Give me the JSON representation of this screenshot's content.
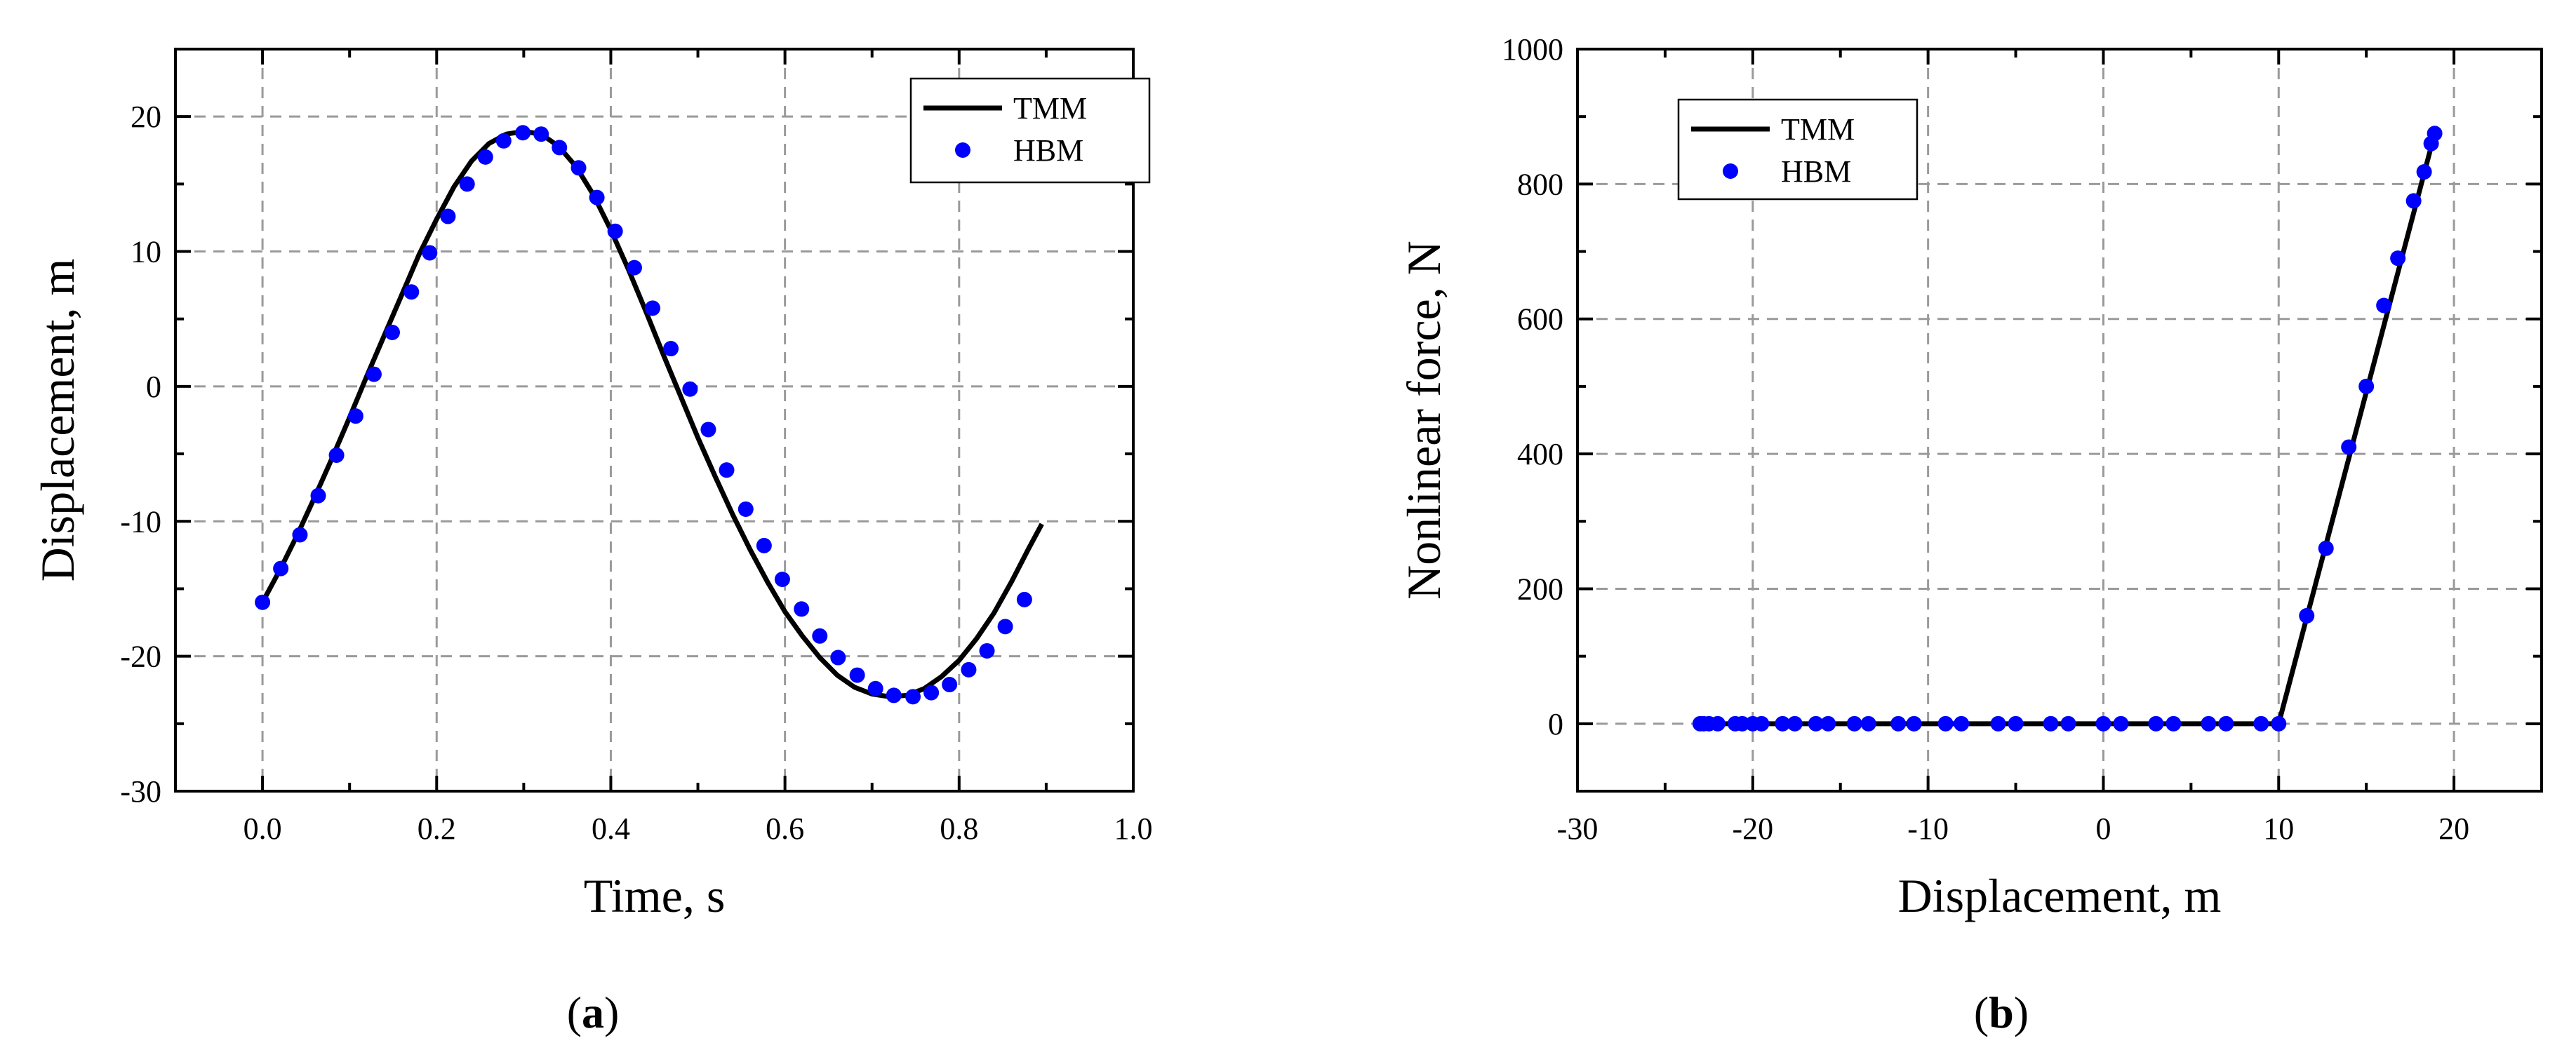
{
  "chart_data": [
    {
      "type": "line",
      "panel_label": "a",
      "title": "",
      "xlabel": "Time, s",
      "ylabel": "Displacement, m",
      "xlim": [
        -0.1,
        1.0
      ],
      "ylim": [
        -30,
        25
      ],
      "xticks": [
        0.0,
        0.2,
        0.4,
        0.6,
        0.8,
        1.0
      ],
      "xtick_labels": [
        "0.0",
        "0.2",
        "0.4",
        "0.6",
        "0.8",
        "1.0"
      ],
      "yticks": [
        -30,
        -20,
        -10,
        0,
        10,
        20
      ],
      "ytick_labels": [
        "-30",
        "-20",
        "-10",
        "0",
        "10",
        "20"
      ],
      "grid": true,
      "legend_position": "top-right",
      "series": [
        {
          "name": "TMM",
          "style": "line",
          "color": "#000000",
          "x": [
            0.0,
            0.02,
            0.04,
            0.06,
            0.08,
            0.1,
            0.12,
            0.14,
            0.16,
            0.18,
            0.2,
            0.22,
            0.24,
            0.26,
            0.28,
            0.3,
            0.32,
            0.34,
            0.36,
            0.38,
            0.4,
            0.42,
            0.44,
            0.46,
            0.48,
            0.5,
            0.52,
            0.54,
            0.56,
            0.58,
            0.6,
            0.62,
            0.64,
            0.66,
            0.68,
            0.7,
            0.72,
            0.74,
            0.76,
            0.78,
            0.8,
            0.82,
            0.84,
            0.86,
            0.88,
            0.895
          ],
          "y": [
            -16.0,
            -13.6,
            -11.0,
            -8.2,
            -5.3,
            -2.3,
            0.8,
            3.8,
            6.8,
            9.8,
            12.4,
            14.8,
            16.7,
            18.0,
            18.7,
            18.9,
            18.7,
            17.8,
            16.3,
            14.2,
            11.6,
            8.7,
            5.6,
            2.4,
            -0.7,
            -3.8,
            -6.7,
            -9.5,
            -12.1,
            -14.5,
            -16.7,
            -18.5,
            -20.1,
            -21.4,
            -22.3,
            -22.8,
            -23.0,
            -22.9,
            -22.4,
            -21.5,
            -20.3,
            -18.7,
            -16.8,
            -14.5,
            -12.0,
            -10.2
          ]
        },
        {
          "name": "HBM",
          "style": "markers",
          "color": "#0000ff",
          "x": [
            0.0,
            0.021,
            0.043,
            0.064,
            0.085,
            0.107,
            0.128,
            0.149,
            0.171,
            0.192,
            0.213,
            0.235,
            0.256,
            0.277,
            0.299,
            0.32,
            0.341,
            0.363,
            0.384,
            0.405,
            0.427,
            0.448,
            0.469,
            0.491,
            0.512,
            0.533,
            0.555,
            0.576,
            0.597,
            0.619,
            0.64,
            0.661,
            0.683,
            0.704,
            0.725,
            0.747,
            0.768,
            0.789,
            0.811,
            0.832,
            0.853,
            0.875
          ],
          "y": [
            -16.0,
            -13.5,
            -11.0,
            -8.1,
            -5.1,
            -2.2,
            0.9,
            4.0,
            7.0,
            9.9,
            12.6,
            15.0,
            17.0,
            18.2,
            18.8,
            18.7,
            17.7,
            16.2,
            14.0,
            11.5,
            8.8,
            5.8,
            2.8,
            -0.2,
            -3.2,
            -6.2,
            -9.1,
            -11.8,
            -14.3,
            -16.5,
            -18.5,
            -20.1,
            -21.4,
            -22.4,
            -22.9,
            -23.0,
            -22.7,
            -22.1,
            -21.0,
            -19.6,
            -17.8,
            -15.8
          ]
        }
      ]
    },
    {
      "type": "line",
      "panel_label": "b",
      "title": "",
      "xlabel": "Displacement, m",
      "ylabel": "Nonlinear force, N",
      "xlim": [
        -30,
        25
      ],
      "ylim": [
        -100,
        1000
      ],
      "xticks": [
        -30,
        -20,
        -10,
        0,
        10,
        20
      ],
      "xtick_labels": [
        "-30",
        "-20",
        "-10",
        "0",
        "10",
        "20"
      ],
      "yticks": [
        0,
        200,
        400,
        600,
        800,
        1000
      ],
      "ytick_labels": [
        "0",
        "200",
        "400",
        "600",
        "800",
        "1000"
      ],
      "grid": true,
      "legend_position": "top-left",
      "series": [
        {
          "name": "TMM",
          "style": "line",
          "color": "#000000",
          "x": [
            -23.0,
            10.0,
            18.9
          ],
          "y": [
            0,
            0,
            875
          ]
        },
        {
          "name": "HBM",
          "style": "markers",
          "color": "#0000ff",
          "x": [
            -23.0,
            -22.8,
            -22.5,
            -22.0,
            -21.0,
            -20.6,
            -20.0,
            -19.5,
            -18.3,
            -17.6,
            -16.4,
            -15.7,
            -14.2,
            -13.4,
            -11.7,
            -10.8,
            -9.0,
            -8.1,
            -6.0,
            -5.0,
            -3.0,
            -2.0,
            0.0,
            1.0,
            3.0,
            4.0,
            6.0,
            7.0,
            9.0,
            10.0,
            11.6,
            12.7,
            14.0,
            15.0,
            16.0,
            16.8,
            17.7,
            18.3,
            18.7,
            18.9
          ],
          "y": [
            0,
            0,
            0,
            0,
            0,
            0,
            0,
            0,
            0,
            0,
            0,
            0,
            0,
            0,
            0,
            0,
            0,
            0,
            0,
            0,
            0,
            0,
            0,
            0,
            0,
            0,
            0,
            0,
            0,
            0,
            160,
            260,
            410,
            500,
            620,
            690,
            775,
            818,
            860,
            875
          ]
        }
      ]
    }
  ]
}
